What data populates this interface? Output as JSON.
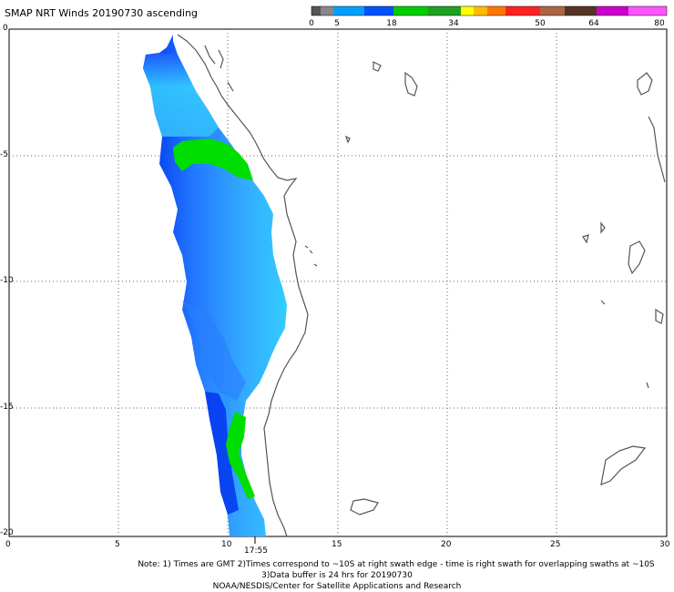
{
  "title": "SMAP NRT Winds 20190730 ascending",
  "legend": {
    "labels": [
      "0",
      "5",
      "18",
      "34",
      "50",
      "64",
      "80"
    ],
    "colors": [
      "#555555",
      "#888888",
      "#00a0ff",
      "#0050ff",
      "#00cc00",
      "#20a020",
      "#ffff00",
      "#ff9900",
      "#ff5500",
      "#ff0000",
      "#dd0000",
      "#aa6644",
      "#664422",
      "#441100",
      "#cc00cc",
      "#ff44ff"
    ]
  },
  "axes": {
    "x_ticks": [
      "0",
      "5",
      "10",
      "15",
      "20",
      "25",
      "30"
    ],
    "y_ticks": [
      "0",
      "-5",
      "-10",
      "-15",
      "-20"
    ]
  },
  "swath_time": "17:55",
  "notes": {
    "line1": "Note: 1) Times are GMT 2)Times correspond to ~10S at right swath edge - time is right swath for overlapping swaths at ~10S",
    "line2": "3)Data buffer is 24 hrs for 20190730",
    "line3": "NOAA/NESDIS/Center for Satellite Applications and Research"
  },
  "colors": {
    "coast": "#555555",
    "grid": "#666666",
    "wind_light": "#33ccff",
    "wind_mid": "#3399ff",
    "wind_dark": "#0033ee",
    "wind_green": "#00dd00"
  }
}
